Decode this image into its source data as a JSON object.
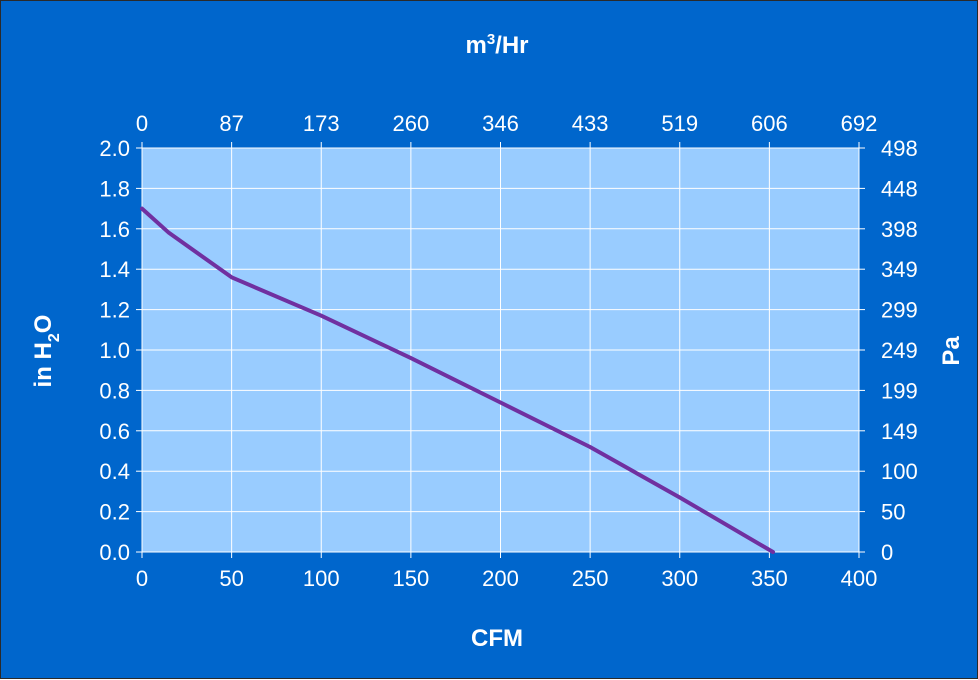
{
  "chart_data": {
    "type": "line",
    "title": "",
    "xlabel": "CFM",
    "ylabel": "in H",
    "ylabel_sub": "2",
    "ylabel_tail": "O",
    "x2label": "m",
    "x2label_sup": "3",
    "x2label_tail": "/Hr",
    "y2label": "Pa",
    "xlim": [
      0,
      400
    ],
    "ylim": [
      0,
      2.0
    ],
    "x_ticks": [
      "0",
      "50",
      "100",
      "150",
      "200",
      "250",
      "300",
      "350",
      "400"
    ],
    "y_ticks": [
      "0.0",
      "0.2",
      "0.4",
      "0.6",
      "0.8",
      "1.0",
      "1.2",
      "1.4",
      "1.6",
      "1.8",
      "2.0"
    ],
    "x2_ticks": [
      "0",
      "87",
      "173",
      "260",
      "346",
      "433",
      "519",
      "606",
      "692"
    ],
    "y2_ticks": [
      "0",
      "50",
      "100",
      "149",
      "199",
      "249",
      "299",
      "349",
      "398",
      "448",
      "498"
    ],
    "grid": true,
    "plot_background": "#99ccff",
    "background": "#0066cc",
    "line_color": "#7030a0",
    "series": [
      {
        "x": [
          0,
          15,
          50,
          100,
          150,
          200,
          250,
          300,
          352
        ],
        "y": [
          1.7,
          1.58,
          1.36,
          1.17,
          0.96,
          0.74,
          0.52,
          0.27,
          0.0
        ]
      }
    ]
  }
}
